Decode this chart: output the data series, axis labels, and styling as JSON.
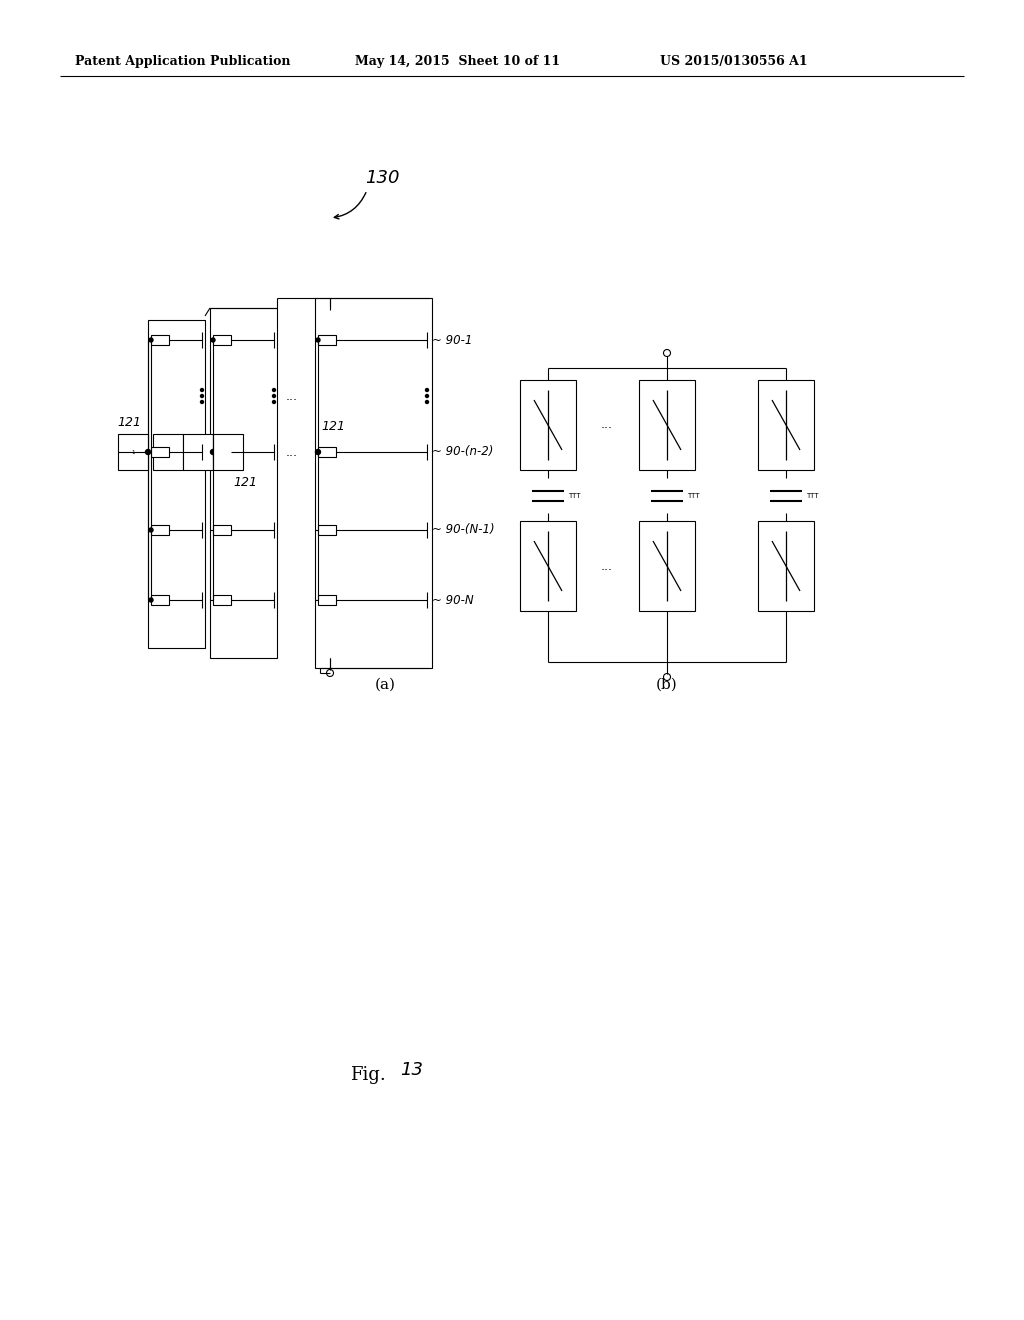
{
  "background_color": "#ffffff",
  "header_text": "Patent Application Publication",
  "header_date": "May 14, 2015  Sheet 10 of 11",
  "header_patent": "US 2015/0130556 A1",
  "label_130": "130",
  "label_a": "(a)",
  "label_b": "(b)",
  "label_121a": "121",
  "label_121b": "121",
  "label_121c": "121",
  "label_90_1": "90-1",
  "label_90_n2": "90-(n-2)",
  "label_90_n1": "90-(N-1)",
  "label_90_N": "90-N",
  "fig_text": "Fig.",
  "fig_num": "13"
}
